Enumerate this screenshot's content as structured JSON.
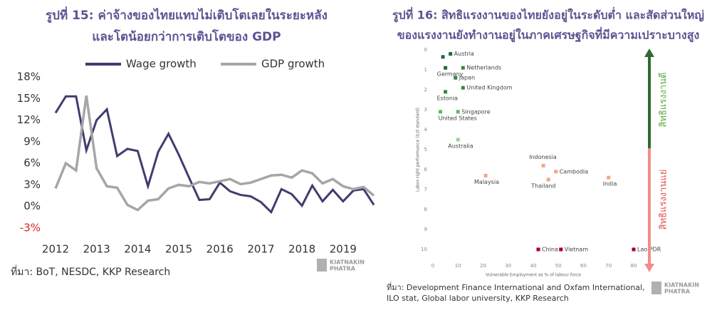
{
  "logo": [
    "KIATNAKIN",
    "PHATRA"
  ],
  "chart_data": [
    {
      "type": "line",
      "title": [
        "รูปที่ 15: ค่าจ้างของไทยแทบไม่เติบโตเลยในระยะหลัง",
        "และโตน้อยกว่าการเติบโตของ GDP"
      ],
      "source": "ที่มา: BoT, NESDC, KKP Research",
      "x": [
        2012,
        2012.25,
        2012.5,
        2012.75,
        2013,
        2013.25,
        2013.5,
        2013.75,
        2014,
        2014.25,
        2014.5,
        2014.75,
        2015,
        2015.25,
        2015.5,
        2015.75,
        2016,
        2016.25,
        2016.5,
        2016.75,
        2017,
        2017.25,
        2017.5,
        2017.75,
        2018,
        2018.25,
        2018.5,
        2018.75,
        2019,
        2019.25,
        2019.5,
        2019.75
      ],
      "series": [
        {
          "name": "Wage growth",
          "color": "#3f3d6e",
          "values": [
            13.0,
            15.3,
            15.3,
            7.8,
            12.0,
            13.5,
            7.0,
            8.0,
            7.7,
            2.8,
            7.6,
            10.1,
            7.2,
            4.0,
            0.9,
            1.0,
            3.3,
            2.1,
            1.6,
            1.4,
            0.6,
            -0.8,
            2.4,
            1.7,
            0.1,
            2.9,
            0.7,
            2.3,
            0.7,
            2.2,
            2.4,
            0.2
          ]
        },
        {
          "name": "GDP growth",
          "color": "#a6a6a6",
          "values": [
            2.5,
            6.0,
            5.0,
            15.4,
            5.3,
            2.8,
            2.6,
            0.2,
            -0.5,
            0.8,
            1.0,
            2.5,
            3.0,
            2.8,
            3.4,
            3.2,
            3.5,
            3.8,
            3.1,
            3.3,
            3.8,
            4.3,
            4.4,
            4.0,
            5.0,
            4.6,
            3.2,
            3.8,
            2.8,
            2.4,
            2.7,
            1.5
          ]
        }
      ],
      "xlim": [
        2012,
        2019.8
      ],
      "xticks": [
        2012,
        2013,
        2014,
        2015,
        2016,
        2017,
        2018,
        2019
      ],
      "ylim": [
        -4.5,
        18
      ],
      "yticks": [
        {
          "value": -3,
          "label": "-3%"
        },
        {
          "value": 0,
          "label": "0%"
        },
        {
          "value": 3,
          "label": "3%"
        },
        {
          "value": 6,
          "label": "6%"
        },
        {
          "value": 9,
          "label": "9%"
        },
        {
          "value": 12,
          "label": "12%"
        },
        {
          "value": 15,
          "label": "15%"
        },
        {
          "value": 18,
          "label": "18%"
        }
      ],
      "negative_tick_color": "#e02020",
      "grid": false
    },
    {
      "type": "scatter",
      "title": [
        "รูปที่ 16: สิทธิแรงงานของไทยยังอยู่ในระดับต่ำ และสัดส่วนใหญ่",
        "ของแรงงานยังทำงานอยู่ในภาคเศรษฐกิจที่มีความเปราะบางสูง"
      ],
      "source": [
        "ที่มา: Development Finance International and Oxfam International,",
        "ILO stat, Global labor university, KKP Research"
      ],
      "xlabel": "Vulnerable Employment as % of labour force",
      "ylabel": "Labor right performance (ILO standard)",
      "points": [
        {
          "label": null,
          "x": 4,
          "y": 0.35,
          "color": "#1e6b34"
        },
        {
          "label": "Austria",
          "x": 7,
          "y": 0.2,
          "color": "#1e6b34"
        },
        {
          "label": "Germany",
          "x": 5,
          "y": 0.9,
          "color": "#1e6b34"
        },
        {
          "label": "Netherlands",
          "x": 12,
          "y": 0.9,
          "color": "#2e8b45"
        },
        {
          "label": "Japan",
          "x": 9,
          "y": 1.4,
          "color": "#2e8b45"
        },
        {
          "label": "United Kingdom",
          "x": 12,
          "y": 1.9,
          "color": "#2e8b45"
        },
        {
          "label": "Estonia",
          "x": 5,
          "y": 2.1,
          "color": "#2e8b45"
        },
        {
          "label": "Singapore",
          "x": 10,
          "y": 3.1,
          "color": "#5cb85c"
        },
        {
          "label": "United States",
          "x": 3,
          "y": 3.1,
          "color": "#5cb85c"
        },
        {
          "label": "Australia",
          "x": 10,
          "y": 4.5,
          "color": "#9bd29b"
        },
        {
          "label": "Indonesia",
          "x": 44,
          "y": 5.8,
          "color": "#f4a582"
        },
        {
          "label": "Cambodia",
          "x": 49,
          "y": 6.1,
          "color": "#f4a582"
        },
        {
          "label": "Thailand",
          "x": 46,
          "y": 6.5,
          "color": "#f4a582"
        },
        {
          "label": "Malaysia",
          "x": 21,
          "y": 6.3,
          "color": "#f4a582"
        },
        {
          "label": "India",
          "x": 70,
          "y": 6.4,
          "color": "#f4a582"
        },
        {
          "label": "China",
          "x": 42,
          "y": 10,
          "color": "#a50026"
        },
        {
          "label": "Vietnam",
          "x": 51,
          "y": 10,
          "color": "#a50026"
        },
        {
          "label": "Lao PDR",
          "x": 80,
          "y": 10,
          "color": "#a50026"
        }
      ],
      "xlim": [
        0,
        80
      ],
      "xticks": [
        0,
        10,
        20,
        30,
        40,
        50,
        60,
        70,
        80
      ],
      "ylim": [
        0,
        10
      ],
      "yticks": [
        0,
        1,
        2,
        3,
        4,
        5,
        6,
        7,
        8,
        9,
        10
      ],
      "y_reversed": true,
      "arrow_labels": {
        "top": "สิทธิแรงงานดี",
        "bottom": "สิทธิแรงงานแย่"
      }
    }
  ]
}
